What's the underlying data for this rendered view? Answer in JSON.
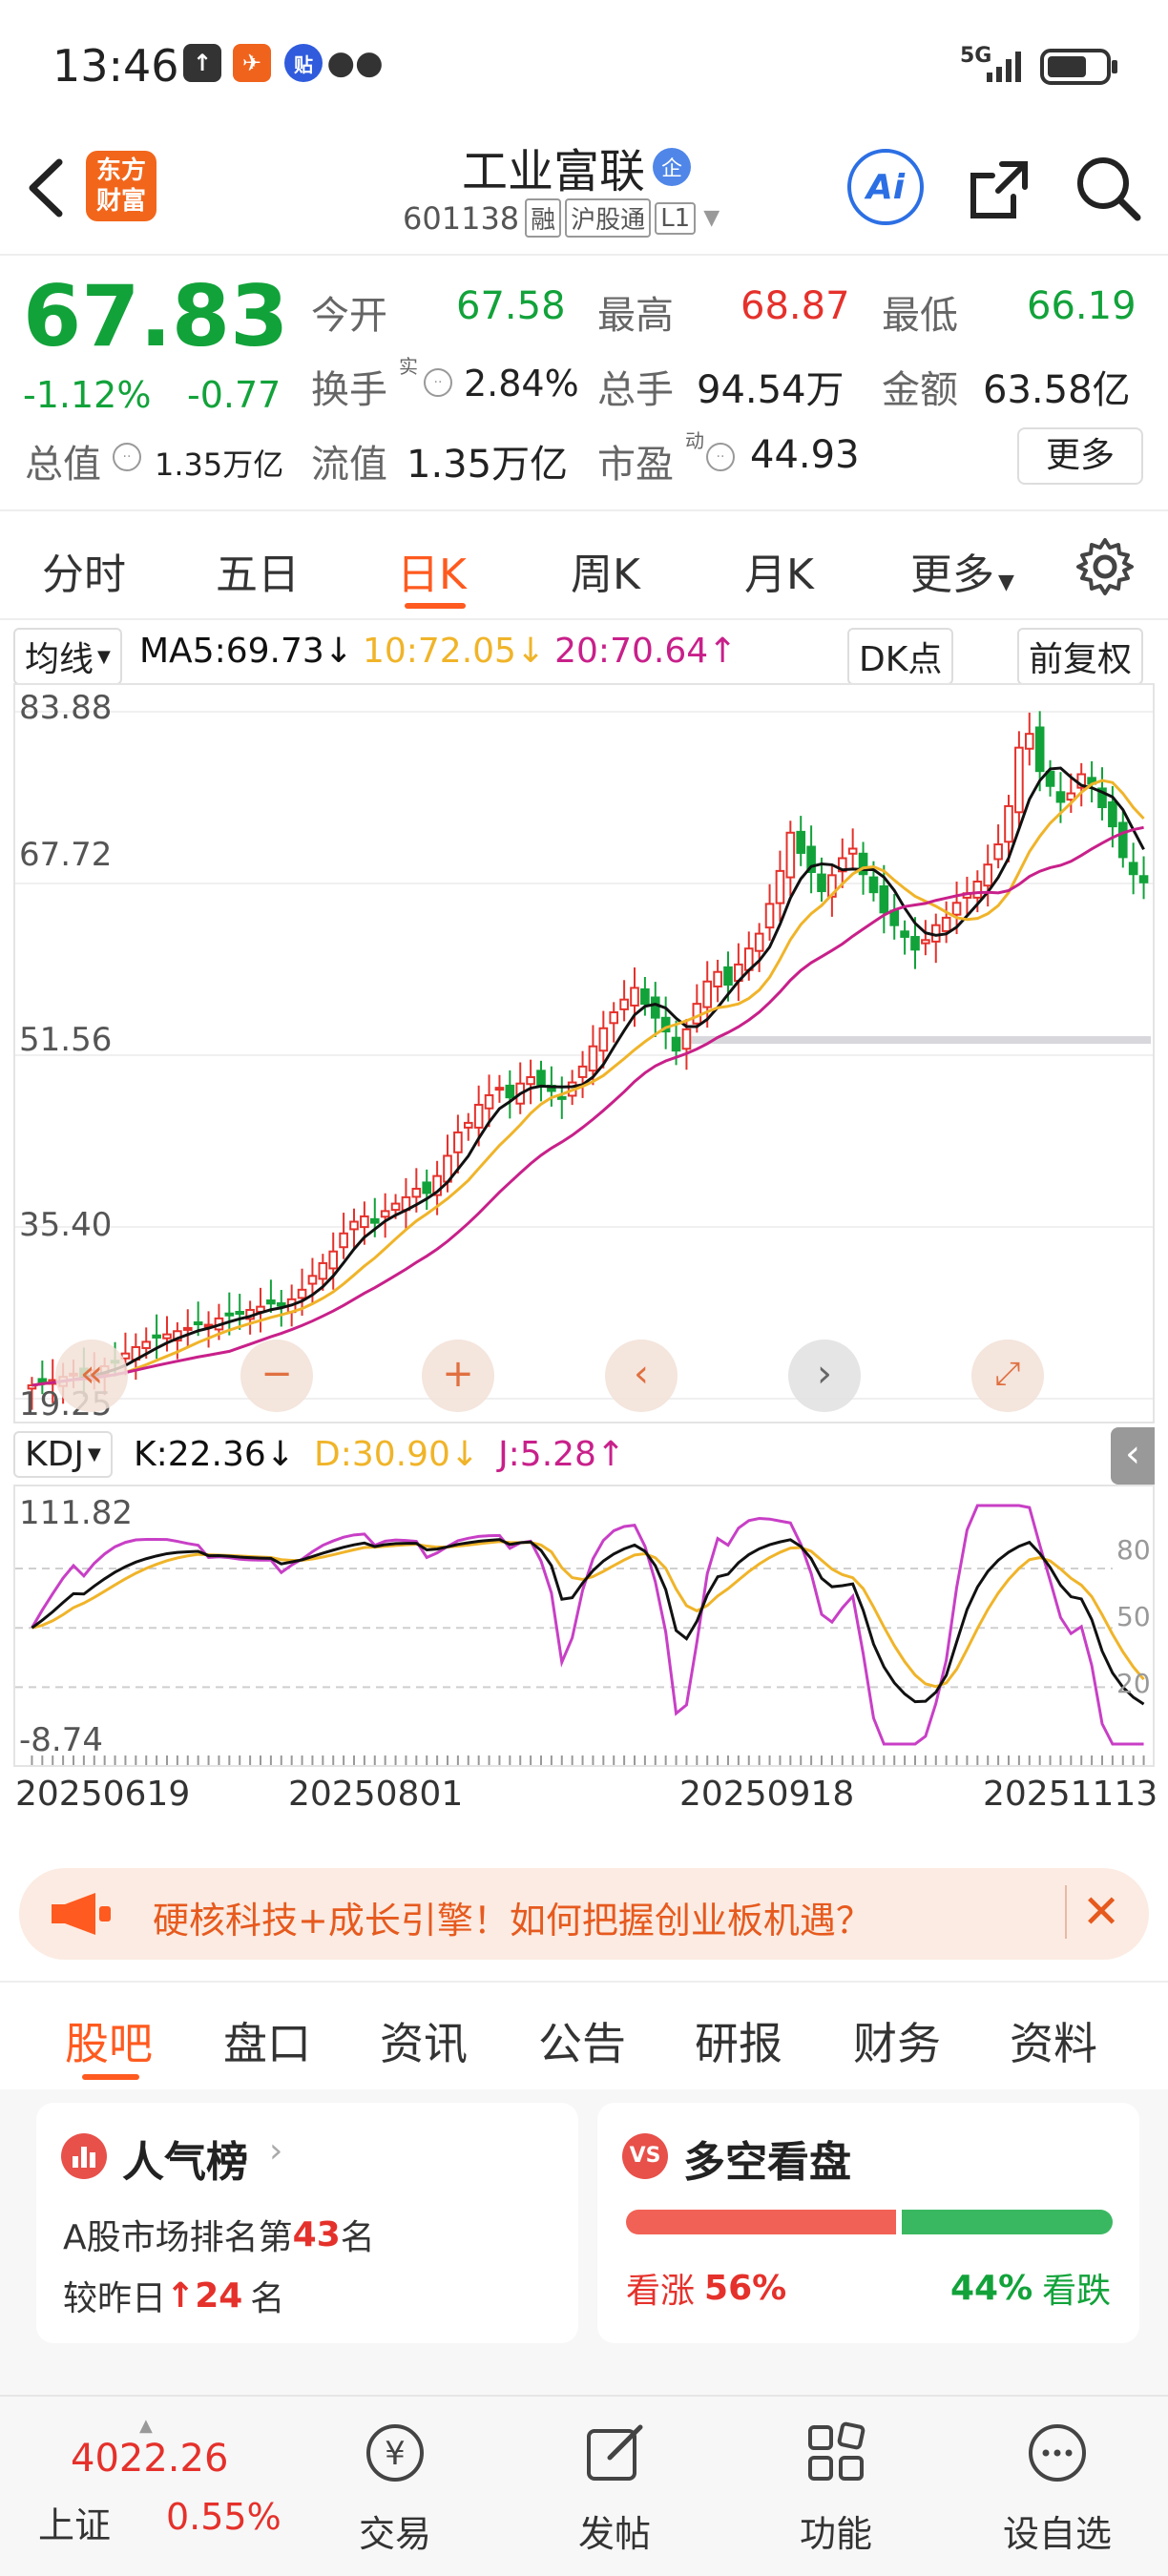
{
  "status_bar": {
    "time": "13:46",
    "signal": "5G",
    "app_icons": [
      "upload-icon",
      "feishu-icon",
      "tieba-icon",
      "wechat-icon"
    ]
  },
  "header": {
    "logo_line1": "东方",
    "logo_line2": "财富",
    "stock_name": "工业富联",
    "stock_badge": "企",
    "stock_code": "601138",
    "tags": [
      "融",
      "沪股通",
      "L1"
    ],
    "ai_label": "Ai"
  },
  "quote": {
    "price": "67.83",
    "change_pct": "-1.12%",
    "change_abs": "-0.77",
    "open_label": "今开",
    "open_value": "67.58",
    "high_label": "最高",
    "high_value": "68.87",
    "low_label": "最低",
    "low_value": "66.19",
    "turnover_label": "换手",
    "turnover_sup": "实",
    "turnover_value": "2.84%",
    "volume_label": "总手",
    "volume_value": "94.54万",
    "amount_label": "金额",
    "amount_value": "63.58亿",
    "mcap_label": "总值",
    "mcap_value": "1.35万亿",
    "float_label": "流值",
    "float_value": "1.35万亿",
    "pe_label": "市盈",
    "pe_sup": "动",
    "pe_value": "44.93",
    "more_label": "更多"
  },
  "period_tabs": [
    "分时",
    "五日",
    "日K",
    "周K",
    "月K",
    "更多"
  ],
  "active_period": "日K",
  "chart_toolbar": {
    "ma_selector": "均线",
    "ma5": "MA5:69.73",
    "ma10": "10:72.05",
    "ma20": "20:70.64",
    "dk_label": "DK点",
    "adjust_label": "前复权"
  },
  "kdj_toolbar": {
    "selector": "KDJ",
    "k": "K:22.36",
    "d": "D:30.90",
    "j": "J:5.28"
  },
  "colors": {
    "red": "#e5312b",
    "green": "#12a23a",
    "ma5": "#111111",
    "ma10": "#f0b429",
    "ma20": "#c8208a",
    "accent": "#ff5a1f",
    "blue": "#1f6fe0"
  },
  "chart_data": [
    {
      "type": "candlestick",
      "title": "",
      "y_ticks": [
        "83.88",
        "67.72",
        "51.56",
        "35.40",
        "19.25"
      ],
      "ylim": [
        19.25,
        83.88
      ],
      "x_ticks": [
        "20250619",
        "20250801",
        "20250918",
        "20251113"
      ],
      "series": [
        {
          "name": "MA5",
          "value": 69.73
        },
        {
          "name": "MA10",
          "value": 72.05
        },
        {
          "name": "MA20",
          "value": 70.64
        }
      ],
      "closes": [
        20.5,
        20.8,
        21.0,
        21.3,
        21.6,
        21.4,
        21.9,
        22.3,
        22.8,
        23.5,
        24.1,
        24.6,
        25.0,
        25.3,
        25.6,
        25.9,
        26.4,
        26.2,
        26.8,
        27.1,
        27.3,
        27.6,
        27.9,
        28.2,
        28.0,
        28.6,
        29.5,
        30.8,
        32.0,
        33.1,
        34.8,
        35.9,
        36.4,
        35.8,
        36.9,
        37.6,
        38.2,
        39.0,
        38.6,
        40.2,
        42.1,
        44.3,
        45.2,
        46.9,
        47.8,
        48.5,
        47.6,
        48.9,
        49.5,
        48.8,
        48.2,
        47.5,
        49.0,
        50.5,
        52.4,
        54.1,
        55.6,
        56.8,
        57.9,
        56.4,
        55.1,
        53.8,
        52.0,
        54.0,
        56.4,
        58.5,
        59.4,
        58.2,
        60.1,
        61.6,
        63.0,
        65.8,
        68.9,
        72.5,
        70.6,
        68.8,
        67.0,
        68.5,
        70.1,
        71.0,
        68.6,
        66.9,
        65.0,
        63.8,
        62.7,
        61.5,
        62.4,
        63.8,
        64.5,
        65.9,
        66.8,
        67.9,
        69.5,
        71.4,
        75.0,
        80.5,
        81.8,
        78.3,
        76.9,
        75.4,
        76.2,
        78.0,
        77.1,
        74.9,
        73.1,
        70.2,
        68.6,
        67.83
      ],
      "value_label_notes": "values read approximately from axes"
    },
    {
      "type": "line",
      "title": "",
      "y_ticks": [
        "111.82",
        "-8.74"
      ],
      "right_ticks": [
        "80",
        "50",
        "20"
      ],
      "ylim": [
        -8.74,
        111.82
      ],
      "series": [
        {
          "name": "K",
          "last": 22.36
        },
        {
          "name": "D",
          "last": 30.9
        },
        {
          "name": "J",
          "last": 5.28
        }
      ]
    }
  ],
  "date_ticks": [
    "20250619",
    "20250801",
    "20250918",
    "20251113"
  ],
  "ad_banner": {
    "text": "硬核科技+成长引擎！如何把握创业板机遇？"
  },
  "section_tabs": [
    "股吧",
    "盘口",
    "资讯",
    "公告",
    "研报",
    "财务",
    "资料"
  ],
  "active_section": "股吧",
  "popularity_card": {
    "title": "人气榜",
    "line1_prefix": "A股市场排名第",
    "line1_rank": "43",
    "line1_suffix": "名",
    "line2_prefix": "较昨日",
    "line2_change": "24",
    "line2_suffix": "名"
  },
  "sentiment_card": {
    "title": "多空看盘",
    "bull_label": "看涨",
    "bull_pct": "56%",
    "bear_pct": "44%",
    "bear_label": "看跌",
    "bull_fraction": 0.56
  },
  "bottom_nav": {
    "index_value": "4022.26",
    "index_name": "上证",
    "index_change": "0.55%",
    "items": [
      "交易",
      "发帖",
      "功能",
      "设自选"
    ]
  }
}
